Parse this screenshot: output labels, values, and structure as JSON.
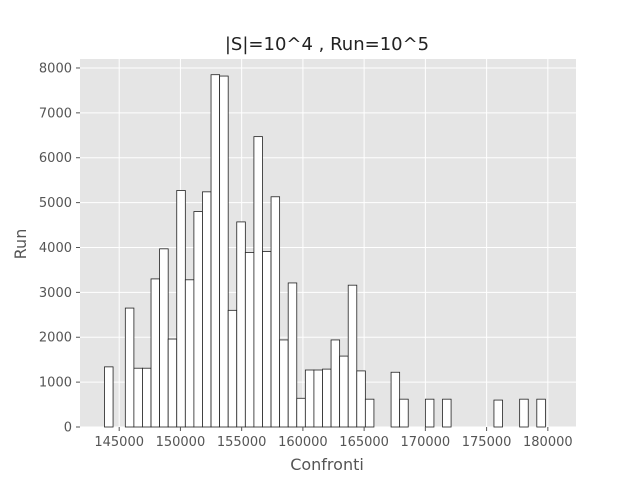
{
  "chart_data": {
    "type": "bar",
    "title": "|S|=10^4 , Run=10^5",
    "xlabel": "Confronti",
    "ylabel": "Run",
    "xlim": [
      141800,
      182300
    ],
    "ylim": [
      0,
      8200
    ],
    "xticks": [
      145000,
      150000,
      155000,
      160000,
      165000,
      170000,
      175000,
      180000
    ],
    "yticks": [
      0,
      1000,
      2000,
      3000,
      4000,
      5000,
      6000,
      7000,
      8000
    ],
    "grid": true,
    "bin_width": 700,
    "bins": [
      {
        "x": 144150,
        "value": 1340
      },
      {
        "x": 145850,
        "value": 2650
      },
      {
        "x": 146550,
        "value": 1310
      },
      {
        "x": 147250,
        "value": 1310
      },
      {
        "x": 147950,
        "value": 3300
      },
      {
        "x": 148650,
        "value": 3970
      },
      {
        "x": 149350,
        "value": 1960
      },
      {
        "x": 150050,
        "value": 5270
      },
      {
        "x": 150750,
        "value": 3280
      },
      {
        "x": 151450,
        "value": 4800
      },
      {
        "x": 152150,
        "value": 5240
      },
      {
        "x": 152850,
        "value": 7850
      },
      {
        "x": 153550,
        "value": 7820
      },
      {
        "x": 154250,
        "value": 2600
      },
      {
        "x": 154950,
        "value": 4570
      },
      {
        "x": 155650,
        "value": 3890
      },
      {
        "x": 156350,
        "value": 6470
      },
      {
        "x": 157050,
        "value": 3910
      },
      {
        "x": 157750,
        "value": 5130
      },
      {
        "x": 158450,
        "value": 1940
      },
      {
        "x": 159150,
        "value": 3210
      },
      {
        "x": 159850,
        "value": 640
      },
      {
        "x": 160550,
        "value": 1270
      },
      {
        "x": 161250,
        "value": 1270
      },
      {
        "x": 161950,
        "value": 1290
      },
      {
        "x": 162650,
        "value": 1940
      },
      {
        "x": 163350,
        "value": 1580
      },
      {
        "x": 164050,
        "value": 3160
      },
      {
        "x": 164750,
        "value": 1250
      },
      {
        "x": 165450,
        "value": 620
      },
      {
        "x": 167550,
        "value": 1220
      },
      {
        "x": 168250,
        "value": 620
      },
      {
        "x": 170350,
        "value": 620
      },
      {
        "x": 171750,
        "value": 620
      },
      {
        "x": 175950,
        "value": 600
      },
      {
        "x": 178050,
        "value": 620
      },
      {
        "x": 179450,
        "value": 620
      }
    ],
    "colors": {
      "plot_background": "#e5e5e5",
      "grid": "#ffffff",
      "bar_fill": "#ffffff",
      "bar_edge": "#222222"
    }
  }
}
